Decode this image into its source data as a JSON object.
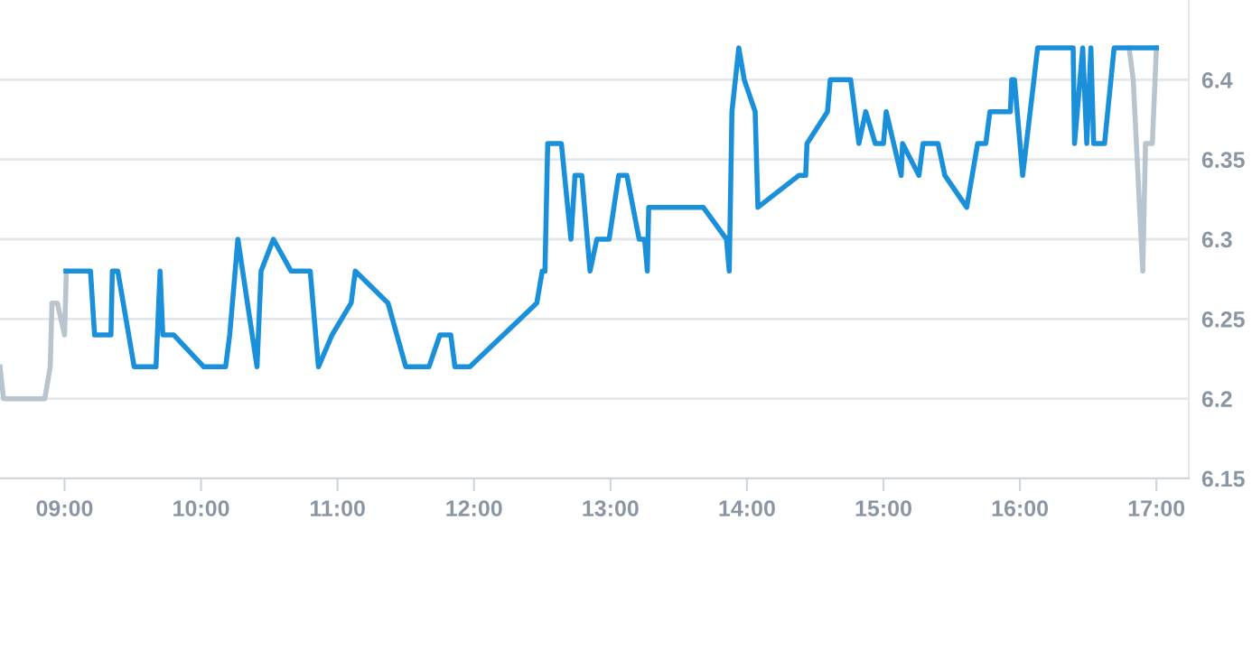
{
  "chart_data": {
    "type": "line",
    "series": [
      {
        "color": "#b8c4ce",
        "x": [
          8.527,
          8.553,
          8.855,
          8.895,
          8.908,
          8.947,
          9.0,
          9.013
        ],
        "values": [
          6.22,
          6.2,
          6.2,
          6.22,
          6.26,
          6.26,
          6.24,
          6.28
        ]
      },
      {
        "color": "#b8c4ce",
        "x": [
          16.8,
          16.83,
          16.9,
          16.92,
          16.97,
          17.0
        ],
        "values": [
          6.42,
          6.4,
          6.28,
          6.36,
          6.36,
          6.42
        ]
      },
      {
        "color": "#1a90db",
        "x": [
          9.01,
          9.19,
          9.22,
          9.34,
          9.35,
          9.39,
          9.47,
          9.51,
          9.67,
          9.7,
          9.72,
          9.8,
          10.02,
          10.18,
          10.21,
          10.27,
          10.41,
          10.44,
          10.53,
          10.66,
          10.8,
          10.86,
          10.96,
          11.1,
          11.13,
          11.37,
          11.5,
          11.67,
          11.75,
          11.83,
          11.86,
          11.97,
          12.46,
          12.5,
          12.52,
          12.54,
          12.64,
          12.71,
          12.74,
          12.79,
          12.85,
          12.9,
          12.99,
          13.06,
          13.12,
          13.21,
          13.25,
          13.27,
          13.28,
          13.68,
          13.85,
          13.87,
          13.89,
          13.94,
          13.98,
          14.06,
          14.08,
          14.38,
          14.43,
          14.44,
          14.59,
          14.61,
          14.76,
          14.82,
          14.87,
          14.94,
          15.0,
          15.02,
          15.13,
          15.14,
          15.26,
          15.29,
          15.4,
          15.45,
          15.61,
          15.69,
          15.75,
          15.78,
          15.93,
          15.94,
          15.96,
          16.02,
          16.13,
          16.39,
          16.4,
          16.46,
          16.49,
          16.52,
          16.54,
          16.62,
          16.69,
          17.0
        ],
        "values": [
          6.28,
          6.28,
          6.24,
          6.24,
          6.28,
          6.28,
          6.24,
          6.22,
          6.22,
          6.28,
          6.24,
          6.24,
          6.22,
          6.22,
          6.24,
          6.3,
          6.22,
          6.28,
          6.3,
          6.28,
          6.28,
          6.22,
          6.24,
          6.26,
          6.28,
          6.26,
          6.22,
          6.22,
          6.24,
          6.24,
          6.22,
          6.22,
          6.26,
          6.28,
          6.28,
          6.36,
          6.36,
          6.3,
          6.34,
          6.34,
          6.28,
          6.3,
          6.3,
          6.34,
          6.34,
          6.3,
          6.3,
          6.28,
          6.32,
          6.32,
          6.3,
          6.28,
          6.38,
          6.42,
          6.4,
          6.38,
          6.32,
          6.34,
          6.34,
          6.36,
          6.38,
          6.4,
          6.4,
          6.36,
          6.38,
          6.36,
          6.36,
          6.38,
          6.34,
          6.36,
          6.34,
          6.36,
          6.36,
          6.34,
          6.32,
          6.36,
          6.36,
          6.38,
          6.38,
          6.4,
          6.4,
          6.34,
          6.42,
          6.42,
          6.36,
          6.42,
          6.36,
          6.42,
          6.36,
          6.36,
          6.42,
          6.42
        ]
      }
    ],
    "xlim": [
      8.527,
      17.237
    ],
    "xticks": [
      {
        "value": 9,
        "label": "09:00"
      },
      {
        "value": 10,
        "label": "10:00"
      },
      {
        "value": 11,
        "label": "11:00"
      },
      {
        "value": 12,
        "label": "12:00"
      },
      {
        "value": 13,
        "label": "13:00"
      },
      {
        "value": 14,
        "label": "14:00"
      },
      {
        "value": 15,
        "label": "15:00"
      },
      {
        "value": 16,
        "label": "16:00"
      },
      {
        "value": 17,
        "label": "17:00"
      }
    ],
    "ylim": [
      6.15,
      6.45
    ],
    "yticks": [
      6.15,
      6.2,
      6.25,
      6.3,
      6.35,
      6.4
    ],
    "grid": "y",
    "marker": "none",
    "line_style": "solid"
  }
}
